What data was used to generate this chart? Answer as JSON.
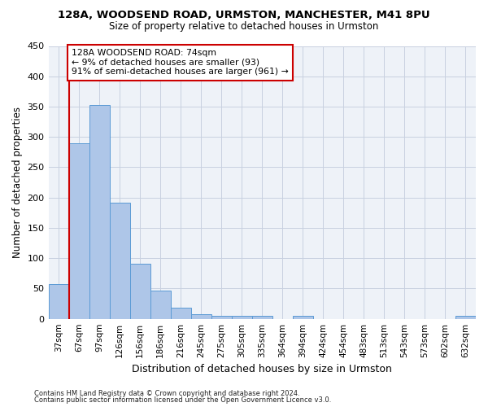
{
  "title1": "128A, WOODSEND ROAD, URMSTON, MANCHESTER, M41 8PU",
  "title2": "Size of property relative to detached houses in Urmston",
  "xlabel": "Distribution of detached houses by size in Urmston",
  "ylabel": "Number of detached properties",
  "footer1": "Contains HM Land Registry data © Crown copyright and database right 2024.",
  "footer2": "Contains public sector information licensed under the Open Government Licence v3.0.",
  "bins": [
    "37sqm",
    "67sqm",
    "97sqm",
    "126sqm",
    "156sqm",
    "186sqm",
    "216sqm",
    "245sqm",
    "275sqm",
    "305sqm",
    "335sqm",
    "364sqm",
    "394sqm",
    "424sqm",
    "454sqm",
    "483sqm",
    "513sqm",
    "543sqm",
    "573sqm",
    "602sqm",
    "632sqm"
  ],
  "values": [
    57,
    290,
    353,
    192,
    91,
    47,
    19,
    8,
    5,
    5,
    5,
    0,
    5,
    0,
    0,
    0,
    0,
    0,
    0,
    0,
    5
  ],
  "bar_color": "#aec6e8",
  "bar_edge_color": "#5b9bd5",
  "grid_color": "#c8d0e0",
  "bg_color": "#eef2f8",
  "annotation_line1": "128A WOODSEND ROAD: 74sqm",
  "annotation_line2": "← 9% of detached houses are smaller (93)",
  "annotation_line3": "91% of semi-detached houses are larger (961) →",
  "annotation_box_color": "#ffffff",
  "annotation_box_edge": "#cc0000",
  "red_line_bin_index": 1,
  "ylim": [
    0,
    450
  ],
  "yticks": [
    0,
    50,
    100,
    150,
    200,
    250,
    300,
    350,
    400,
    450
  ]
}
